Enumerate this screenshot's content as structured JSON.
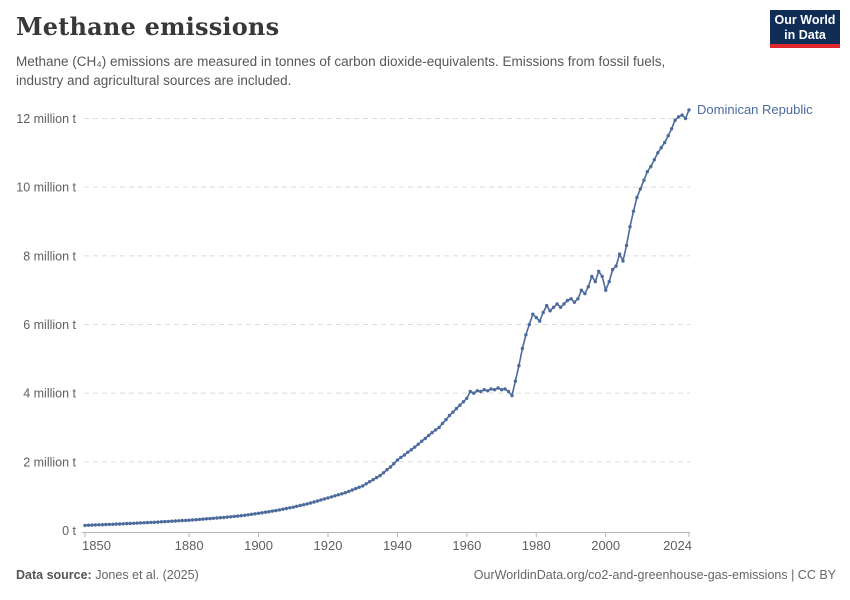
{
  "header": {
    "title": "Methane emissions",
    "subtitle": "Methane (CH₄) emissions are measured in tonnes of carbon dioxide-equivalents. Emissions from fossil fuels,\nindustry and agricultural sources are included."
  },
  "logo": {
    "line1": "Our World",
    "line2": "in Data"
  },
  "colors": {
    "line": "#4c6a9c",
    "entity_label": "#4c6a9c",
    "grid": "#dcdcdc",
    "axis_line": "#b5b5b5",
    "axis_text": "#606060",
    "logo_bg": "#0f2d55",
    "logo_accent": "#e0262c"
  },
  "chart_data": {
    "type": "line",
    "title": "Methane emissions",
    "unit": "tonnes of CO₂-equivalents",
    "x_range": [
      1850,
      2024
    ],
    "y_range": [
      0,
      12.4
    ],
    "grid": "horizontal dashed",
    "legend_position": "end-of-line label",
    "yticks": [
      {
        "value": 0,
        "label": "0 t"
      },
      {
        "value": 2,
        "label": "2 million t"
      },
      {
        "value": 4,
        "label": "4 million t"
      },
      {
        "value": 6,
        "label": "6 million t"
      },
      {
        "value": 8,
        "label": "8 million t"
      },
      {
        "value": 10,
        "label": "10 million t"
      },
      {
        "value": 12,
        "label": "12 million t"
      }
    ],
    "xticks": [
      {
        "value": 1850,
        "label": "1850"
      },
      {
        "value": 1880,
        "label": "1880"
      },
      {
        "value": 1900,
        "label": "1900"
      },
      {
        "value": 1920,
        "label": "1920"
      },
      {
        "value": 1940,
        "label": "1940"
      },
      {
        "value": 1960,
        "label": "1960"
      },
      {
        "value": 1980,
        "label": "1980"
      },
      {
        "value": 2000,
        "label": "2000"
      },
      {
        "value": 2024,
        "label": "2024"
      }
    ],
    "series": [
      {
        "name": "Dominican Republic",
        "color": "#4c6a9c",
        "unit": "million t",
        "points": [
          [
            1850,
            0.15
          ],
          [
            1851,
            0.154
          ],
          [
            1852,
            0.158
          ],
          [
            1853,
            0.162
          ],
          [
            1854,
            0.166
          ],
          [
            1855,
            0.17
          ],
          [
            1856,
            0.174
          ],
          [
            1857,
            0.178
          ],
          [
            1858,
            0.182
          ],
          [
            1859,
            0.186
          ],
          [
            1860,
            0.19
          ],
          [
            1861,
            0.195
          ],
          [
            1862,
            0.2
          ],
          [
            1863,
            0.205
          ],
          [
            1864,
            0.21
          ],
          [
            1865,
            0.215
          ],
          [
            1866,
            0.22
          ],
          [
            1867,
            0.225
          ],
          [
            1868,
            0.23
          ],
          [
            1869,
            0.235
          ],
          [
            1870,
            0.24
          ],
          [
            1871,
            0.246
          ],
          [
            1872,
            0.252
          ],
          [
            1873,
            0.258
          ],
          [
            1874,
            0.264
          ],
          [
            1875,
            0.27
          ],
          [
            1876,
            0.276
          ],
          [
            1877,
            0.282
          ],
          [
            1878,
            0.288
          ],
          [
            1879,
            0.294
          ],
          [
            1880,
            0.3
          ],
          [
            1881,
            0.308
          ],
          [
            1882,
            0.316
          ],
          [
            1883,
            0.324
          ],
          [
            1884,
            0.332
          ],
          [
            1885,
            0.34
          ],
          [
            1886,
            0.348
          ],
          [
            1887,
            0.356
          ],
          [
            1888,
            0.364
          ],
          [
            1889,
            0.372
          ],
          [
            1890,
            0.38
          ],
          [
            1891,
            0.39
          ],
          [
            1892,
            0.4
          ],
          [
            1893,
            0.41
          ],
          [
            1894,
            0.42
          ],
          [
            1895,
            0.43
          ],
          [
            1896,
            0.444
          ],
          [
            1897,
            0.458
          ],
          [
            1898,
            0.472
          ],
          [
            1899,
            0.486
          ],
          [
            1900,
            0.5
          ],
          [
            1901,
            0.516
          ],
          [
            1902,
            0.532
          ],
          [
            1903,
            0.548
          ],
          [
            1904,
            0.564
          ],
          [
            1905,
            0.58
          ],
          [
            1906,
            0.6
          ],
          [
            1907,
            0.62
          ],
          [
            1908,
            0.64
          ],
          [
            1909,
            0.66
          ],
          [
            1910,
            0.68
          ],
          [
            1911,
            0.704
          ],
          [
            1912,
            0.728
          ],
          [
            1913,
            0.752
          ],
          [
            1914,
            0.776
          ],
          [
            1915,
            0.8
          ],
          [
            1916,
            0.83
          ],
          [
            1917,
            0.86
          ],
          [
            1918,
            0.89
          ],
          [
            1919,
            0.92
          ],
          [
            1920,
            0.95
          ],
          [
            1921,
            0.98
          ],
          [
            1922,
            1.01
          ],
          [
            1923,
            1.04
          ],
          [
            1924,
            1.07
          ],
          [
            1925,
            1.1
          ],
          [
            1926,
            1.14
          ],
          [
            1927,
            1.18
          ],
          [
            1928,
            1.22
          ],
          [
            1929,
            1.26
          ],
          [
            1930,
            1.3
          ],
          [
            1931,
            1.36
          ],
          [
            1932,
            1.42
          ],
          [
            1933,
            1.48
          ],
          [
            1934,
            1.54
          ],
          [
            1935,
            1.6
          ],
          [
            1936,
            1.68
          ],
          [
            1937,
            1.77
          ],
          [
            1938,
            1.85
          ],
          [
            1939,
            1.95
          ],
          [
            1940,
            2.05
          ],
          [
            1941,
            2.13
          ],
          [
            1942,
            2.2
          ],
          [
            1943,
            2.28
          ],
          [
            1944,
            2.35
          ],
          [
            1945,
            2.43
          ],
          [
            1946,
            2.51
          ],
          [
            1947,
            2.6
          ],
          [
            1948,
            2.68
          ],
          [
            1949,
            2.77
          ],
          [
            1950,
            2.85
          ],
          [
            1951,
            2.93
          ],
          [
            1952,
            3.0
          ],
          [
            1953,
            3.12
          ],
          [
            1954,
            3.23
          ],
          [
            1955,
            3.35
          ],
          [
            1956,
            3.45
          ],
          [
            1957,
            3.55
          ],
          [
            1958,
            3.65
          ],
          [
            1959,
            3.75
          ],
          [
            1960,
            3.85
          ],
          [
            1961,
            4.05
          ],
          [
            1962,
            4.0
          ],
          [
            1963,
            4.07
          ],
          [
            1964,
            4.05
          ],
          [
            1965,
            4.1
          ],
          [
            1966,
            4.07
          ],
          [
            1967,
            4.12
          ],
          [
            1968,
            4.1
          ],
          [
            1969,
            4.15
          ],
          [
            1970,
            4.1
          ],
          [
            1971,
            4.12
          ],
          [
            1972,
            4.05
          ],
          [
            1973,
            3.93
          ],
          [
            1974,
            4.35
          ],
          [
            1975,
            4.8
          ],
          [
            1976,
            5.3
          ],
          [
            1977,
            5.7
          ],
          [
            1978,
            6.0
          ],
          [
            1979,
            6.3
          ],
          [
            1980,
            6.2
          ],
          [
            1981,
            6.1
          ],
          [
            1982,
            6.35
          ],
          [
            1983,
            6.55
          ],
          [
            1984,
            6.4
          ],
          [
            1985,
            6.5
          ],
          [
            1986,
            6.6
          ],
          [
            1987,
            6.5
          ],
          [
            1988,
            6.6
          ],
          [
            1989,
            6.7
          ],
          [
            1990,
            6.75
          ],
          [
            1991,
            6.65
          ],
          [
            1992,
            6.75
          ],
          [
            1993,
            7.0
          ],
          [
            1994,
            6.9
          ],
          [
            1995,
            7.1
          ],
          [
            1996,
            7.4
          ],
          [
            1997,
            7.25
          ],
          [
            1998,
            7.55
          ],
          [
            1999,
            7.4
          ],
          [
            2000,
            7.0
          ],
          [
            2001,
            7.25
          ],
          [
            2002,
            7.6
          ],
          [
            2003,
            7.7
          ],
          [
            2004,
            8.05
          ],
          [
            2005,
            7.85
          ],
          [
            2006,
            8.3
          ],
          [
            2007,
            8.85
          ],
          [
            2008,
            9.3
          ],
          [
            2009,
            9.7
          ],
          [
            2010,
            9.95
          ],
          [
            2011,
            10.2
          ],
          [
            2012,
            10.45
          ],
          [
            2013,
            10.6
          ],
          [
            2014,
            10.8
          ],
          [
            2015,
            11.0
          ],
          [
            2016,
            11.15
          ],
          [
            2017,
            11.3
          ],
          [
            2018,
            11.5
          ],
          [
            2019,
            11.7
          ],
          [
            2020,
            11.95
          ],
          [
            2021,
            12.05
          ],
          [
            2022,
            12.1
          ],
          [
            2023,
            12.0
          ],
          [
            2024,
            12.25
          ]
        ]
      }
    ]
  },
  "footer": {
    "source_label": "Data source:",
    "source_value": " Jones et al. (2025)",
    "right_text": "OurWorldinData.org/co2-and-greenhouse-gas-emissions | CC BY"
  }
}
